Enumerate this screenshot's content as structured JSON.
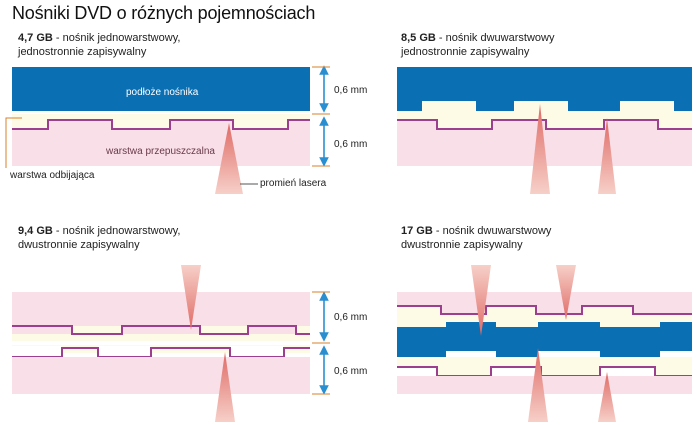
{
  "title": "Nośniki DVD o różnych pojemnościach",
  "panels": {
    "p1": {
      "capacity": "4,7 GB",
      "desc1": " - nośnik jednowarstwowy,",
      "desc2": "jednostronnie zapisywalny"
    },
    "p2": {
      "capacity": "8,5 GB",
      "desc1": " - nośnik dwuwarstwowy",
      "desc2": "jednostronnie zapisywalny"
    },
    "p3": {
      "capacity": "9,4 GB",
      "desc1": " - nośnik jednowarstwowy,",
      "desc2": "dwustronnie zapisywalny"
    },
    "p4": {
      "capacity": "17 GB",
      "desc1": " - nośnik dwuwarstwowy",
      "desc2": "dwustronnie zapisywalny"
    }
  },
  "labels": {
    "substrate": "podłoże nośnika",
    "transmissive": "warstwa przepuszczalna",
    "reflective": "warstwa odbijająca",
    "laser": "promień lasera",
    "thickness1": "0,6 mm",
    "thickness2": "0,6 mm",
    "thickness3": "0,6 mm",
    "thickness4": "0,6 mm"
  },
  "colors": {
    "blue": "#0a6fb3",
    "pink": "#f8dfe8",
    "cream": "#fdfbe6",
    "track": "#9b3f8e",
    "arrow": "#2a8fd0",
    "laser": "#e27b76"
  }
}
